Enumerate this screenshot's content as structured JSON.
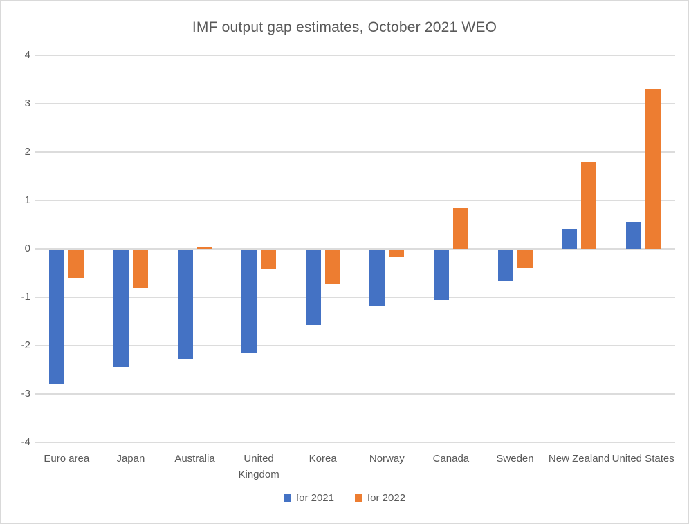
{
  "chart_data": {
    "type": "bar",
    "title": "IMF output gap estimates, October 2021 WEO",
    "categories": [
      "Euro area",
      "Japan",
      "Australia",
      "United Kingdom",
      "Korea",
      "Norway",
      "Canada",
      "Sweden",
      "New Zealand",
      "United States"
    ],
    "series": [
      {
        "name": "for 2021",
        "color": "#4472C4",
        "values": [
          -2.78,
          -2.43,
          -2.26,
          -2.13,
          -1.55,
          -1.16,
          -1.04,
          -0.64,
          0.41,
          0.56
        ]
      },
      {
        "name": "for 2022",
        "color": "#ED7D31",
        "values": [
          -0.58,
          -0.8,
          0.03,
          -0.4,
          -0.71,
          -0.15,
          0.85,
          -0.38,
          1.8,
          3.3
        ]
      }
    ],
    "xlabel": "",
    "ylabel": "",
    "ylim": [
      -4,
      4
    ],
    "ytick_labels": [
      "4",
      "3",
      "2",
      "1",
      "0",
      "-1",
      "-2",
      "-3",
      "-4"
    ],
    "grid": true,
    "legend_position": "bottom"
  },
  "colors": {
    "series_2021": "#4472C4",
    "series_2022": "#ED7D31",
    "gridline": "#DCDCDC",
    "text": "#595959",
    "frame_border": "#D9D9D9",
    "background": "#FFFFFF"
  }
}
